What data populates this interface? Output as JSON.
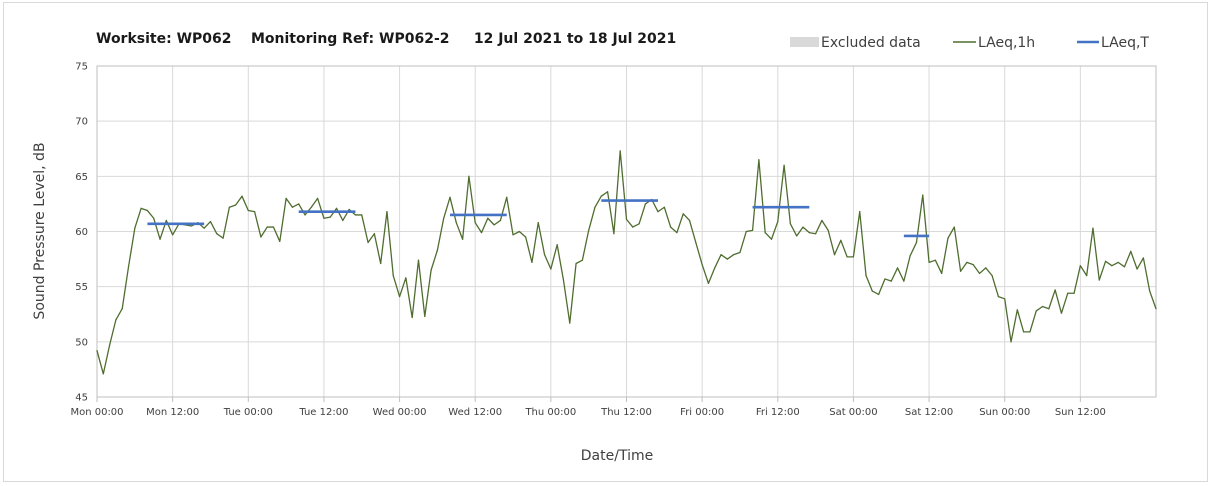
{
  "chart_data": {
    "type": "line",
    "title": "Worksite: WP062    Monitoring Ref: WP062-2     12 Jul 2021 to 18 Jul 2021",
    "xlabel": "Date/Time",
    "ylabel": "Sound Pressure Level, dB",
    "ylim": [
      45,
      75
    ],
    "y_ticks": [
      "45",
      "50",
      "55",
      "60",
      "65",
      "70",
      "75"
    ],
    "x_ticks": [
      "Mon 00:00",
      "Mon 12:00",
      "Tue 00:00",
      "Tue 12:00",
      "Wed 00:00",
      "Wed 12:00",
      "Thu 00:00",
      "Thu 12:00",
      "Fri 00:00",
      "Fri 12:00",
      "Sat 00:00",
      "Sat 12:00",
      "Sun 00:00",
      "Sun 12:00"
    ],
    "x_unit": "hours from Mon 00:00",
    "xlim": [
      0,
      168
    ],
    "grid": true,
    "legend": {
      "position": "top-right",
      "entries": [
        {
          "label": "Excluded data",
          "color": "#d9d9d9"
        },
        {
          "label": "LAeq,1h",
          "color": "#4f6d2f"
        },
        {
          "label": "LAeq,T",
          "color": "#4472c4"
        }
      ]
    },
    "series": [
      {
        "name": "LAeq,1h",
        "color": "#4f6d2f",
        "values": [
          49.2,
          47.1,
          49.7,
          52.0,
          53.0,
          56.8,
          60.3,
          62.1,
          61.9,
          61.2,
          59.3,
          61.0,
          59.7,
          60.7,
          60.6,
          60.5,
          60.8,
          60.3,
          60.9,
          59.8,
          59.4,
          62.2,
          62.4,
          63.2,
          61.9,
          61.8,
          59.5,
          60.4,
          60.4,
          59.1,
          63.0,
          62.2,
          62.5,
          61.5,
          62.2,
          63.0,
          61.2,
          61.3,
          62.1,
          61.0,
          62.0,
          61.5,
          61.5,
          59.0,
          59.8,
          57.1,
          61.8,
          56.0,
          54.1,
          55.8,
          52.2,
          57.4,
          52.3,
          56.5,
          58.3,
          61.2,
          63.1,
          60.8,
          59.3,
          65.0,
          60.8,
          59.9,
          61.2,
          60.6,
          61.0,
          63.1,
          59.7,
          60.0,
          59.5,
          57.2,
          60.8,
          57.9,
          56.6,
          58.8,
          55.6,
          51.7,
          57.1,
          57.4,
          60.1,
          62.2,
          63.2,
          63.6,
          59.8,
          67.3,
          61.1,
          60.4,
          60.7,
          62.5,
          62.9,
          61.8,
          62.2,
          60.4,
          59.9,
          61.6,
          61.0,
          59.0,
          57.0,
          55.3,
          56.7,
          57.9,
          57.5,
          57.9,
          58.1,
          60.0,
          60.1,
          66.5,
          59.9,
          59.3,
          60.9,
          66.0,
          60.7,
          59.6,
          60.4,
          59.9,
          59.8,
          61.0,
          60.1,
          57.9,
          59.2,
          57.7,
          57.7,
          61.8,
          56.0,
          54.6,
          54.3,
          55.7,
          55.5,
          56.7,
          55.5,
          57.8,
          59.0,
          63.3,
          57.2,
          57.4,
          56.2,
          59.4,
          60.4,
          56.4,
          57.2,
          57.0,
          56.2,
          56.7,
          56.0,
          54.1,
          53.9,
          50.0,
          52.9,
          50.9,
          50.9,
          52.8,
          53.2,
          53.0,
          54.7,
          52.6,
          54.4,
          54.4,
          56.9,
          56.0,
          60.3,
          55.6,
          57.3,
          56.9,
          57.2,
          56.8,
          58.2,
          56.6,
          57.6,
          54.6,
          53.0
        ]
      },
      {
        "name": "LAeq,T",
        "color": "#4472c4",
        "segments": [
          {
            "x_start": 8,
            "x_end": 17,
            "value": 60.7
          },
          {
            "x_start": 32,
            "x_end": 41,
            "value": 61.8
          },
          {
            "x_start": 56,
            "x_end": 65,
            "value": 61.5
          },
          {
            "x_start": 80,
            "x_end": 89,
            "value": 62.8
          },
          {
            "x_start": 104,
            "x_end": 113,
            "value": 62.2
          },
          {
            "x_start": 128,
            "x_end": 132,
            "value": 59.6
          }
        ]
      }
    ]
  }
}
